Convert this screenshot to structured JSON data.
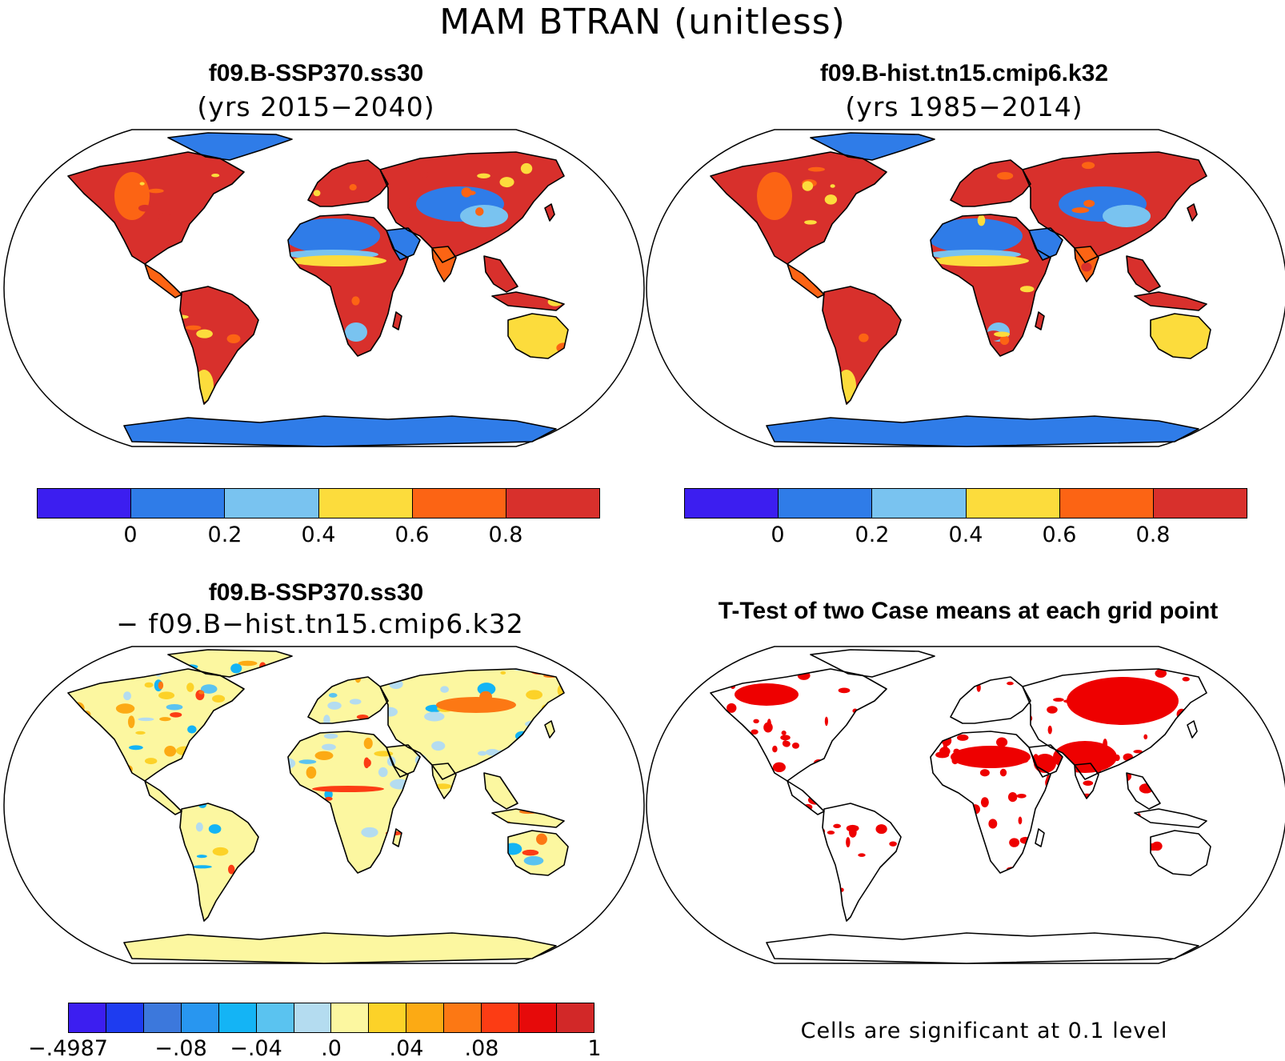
{
  "main_title": "MAM  BTRAN  (unitless)",
  "panels": {
    "top_left": {
      "title": "f09.B-SSP370.ss30",
      "subtitle": "(yrs 2015−2040)"
    },
    "top_right": {
      "title": "f09.B-hist.tn15.cmip6.k32",
      "subtitle": "(yrs 1985−2014)"
    },
    "bottom_left": {
      "title": "f09.B-SSP370.ss30",
      "subtitle": "− f09.B−hist.tn15.cmip6.k32"
    },
    "bottom_right": {
      "title": "T-Test of two Case means at each grid point",
      "note": "Cells are significant at 0.1 level"
    }
  },
  "colorbar_abs": {
    "colors": [
      "#3c1ef0",
      "#2f7ce8",
      "#79c3f0",
      "#fcdc3c",
      "#fc6414",
      "#d8302c"
    ],
    "labels": [
      "0",
      "0.2",
      "0.4",
      "0.6",
      "0.8"
    ]
  },
  "colorbar_diff": {
    "colors": [
      "#3c1ef0",
      "#1e3cf0",
      "#3c78dc",
      "#2896f0",
      "#14b4f5",
      "#5ac3f0",
      "#b4dcf0",
      "#fcf7a0",
      "#fcd228",
      "#fcaa14",
      "#fc7814",
      "#fc3c14",
      "#e60a0a",
      "#d22828"
    ],
    "labels": [
      "−.4987",
      "−.08",
      "−.04",
      ".0",
      ".04",
      ".08",
      "1"
    ]
  },
  "significance_color": "#ee0000"
}
